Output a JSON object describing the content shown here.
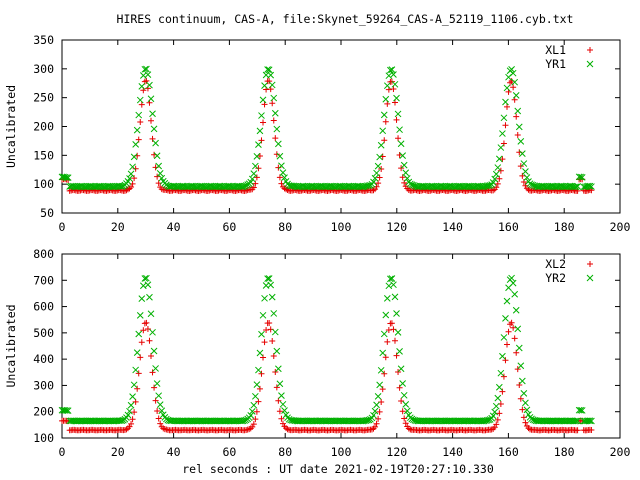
{
  "title": "HIRES continuum, CAS-A, file:Skynet_59264_CAS-A_52119_1106.cyb.txt",
  "xlabel": "rel seconds : UT date 2021-02-19T20:27:10.330",
  "colors": {
    "red": "#e60000",
    "green": "#00b000"
  },
  "chart_data": [
    {
      "type": "scatter",
      "ylabel": "Uncalibrated",
      "xlim": [
        0,
        200
      ],
      "ylim": [
        50,
        350
      ],
      "xticks": [
        0,
        20,
        40,
        60,
        80,
        100,
        120,
        140,
        160,
        180,
        200
      ],
      "yticks": [
        50,
        100,
        150,
        200,
        250,
        300,
        350
      ],
      "legend_position": "top-right",
      "peaks_x": [
        30,
        74,
        118,
        161
      ],
      "series": [
        {
          "name": "XL1",
          "marker": "plus",
          "color": "#e60000",
          "baseline": 89,
          "peak": 280,
          "sigma": 2.0,
          "cal_bump": {
            "x": 186,
            "y": 108
          }
        },
        {
          "name": "YR1",
          "marker": "x",
          "color": "#00b000",
          "baseline": 96,
          "peak": 300,
          "sigma": 2.5,
          "cal_bump": {
            "x": 186,
            "y": 112
          }
        }
      ]
    },
    {
      "type": "scatter",
      "ylabel": "Uncalibrated",
      "xlim": [
        0,
        200
      ],
      "ylim": [
        100,
        800
      ],
      "xticks": [
        0,
        20,
        40,
        60,
        80,
        100,
        120,
        140,
        160,
        180,
        200
      ],
      "yticks": [
        100,
        200,
        300,
        400,
        500,
        600,
        700,
        800
      ],
      "legend_position": "top-right",
      "peaks_x": [
        30,
        74,
        118,
        161
      ],
      "series": [
        {
          "name": "XL2",
          "marker": "plus",
          "color": "#e60000",
          "baseline": 130,
          "peak": 540,
          "sigma": 2.2,
          "cal_bump": {
            "x": 186,
            "y": 165
          }
        },
        {
          "name": "YR2",
          "marker": "x",
          "color": "#00b000",
          "baseline": 165,
          "peak": 710,
          "sigma": 2.5,
          "cal_bump": {
            "x": 186,
            "y": 205
          }
        }
      ]
    }
  ]
}
